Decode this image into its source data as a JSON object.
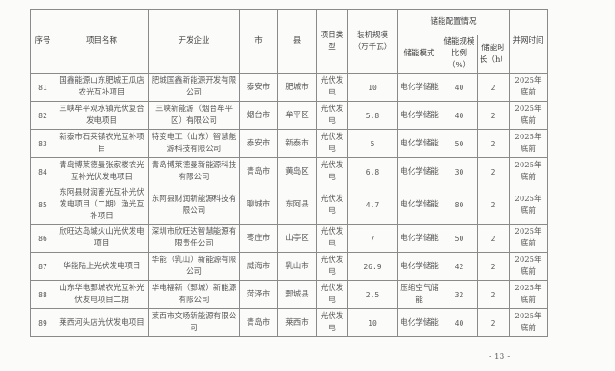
{
  "headers": {
    "seq": "序号",
    "name": "项目名称",
    "company": "开发企业",
    "city": "市",
    "county": "县",
    "type": "项目类型",
    "scale": "装机规模（万千瓦）",
    "storage_group": "储能配置情况",
    "mode": "储能模式",
    "ratio": "储能规模比例（%）",
    "duration": "储能时长（h）",
    "grid_time": "并网时间"
  },
  "rows": [
    {
      "seq": "81",
      "name": "国鑫能源山东肥城王瓜店农光互补项目",
      "company": "肥城国鑫新能源开发有限公司",
      "city": "泰安市",
      "county": "肥城市",
      "type": "光伏发电",
      "scale": "10",
      "mode": "电化学储能",
      "ratio": "40",
      "duration": "2",
      "grid_time": "2025年底前"
    },
    {
      "seq": "82",
      "name": "三峡牟平观水镇光伏复合发电项目",
      "company": "三峡新能源（烟台牟平区）有限公司",
      "city": "烟台市",
      "county": "牟平区",
      "type": "光伏发电",
      "scale": "5.8",
      "mode": "电化学储能",
      "ratio": "40",
      "duration": "2",
      "grid_time": "2025年底前"
    },
    {
      "seq": "83",
      "name": "新泰市石莱镇农光互补项目",
      "company": "特变电工（山东）智慧能源科技有限公司",
      "city": "泰安市",
      "county": "新泰市",
      "type": "光伏发电",
      "scale": "5",
      "mode": "电化学储能",
      "ratio": "50",
      "duration": "2",
      "grid_time": "2025年底前"
    },
    {
      "seq": "84",
      "name": "青岛博莱德曼张家楼农光互补光伏发电项目",
      "company": "青岛博莱德曼新能源科技有限公司",
      "city": "青岛市",
      "county": "黄岛区",
      "type": "光伏发电",
      "scale": "6.8",
      "mode": "电化学储能",
      "ratio": "30",
      "duration": "2",
      "grid_time": "2025年底前"
    },
    {
      "seq": "85",
      "name": "东阿县财润畜光互补光伏发电项目（二期）渔光互补项目",
      "company": "东阿县财润新能源科技有限公司",
      "city": "聊城市",
      "county": "东阿县",
      "type": "光伏发电",
      "scale": "4.7",
      "mode": "电化学储能",
      "ratio": "80",
      "duration": "2",
      "grid_time": "2025年底前"
    },
    {
      "seq": "86",
      "name": "欣旺达岛城火山光伏发电项目",
      "company": "深圳市欣旺达智慧能源有限责任公司",
      "city": "枣庄市",
      "county": "山亭区",
      "type": "光伏发电",
      "scale": "7",
      "mode": "电化学储能",
      "ratio": "50",
      "duration": "2",
      "grid_time": "2025年底前"
    },
    {
      "seq": "87",
      "name": "华能陆上光伏发电项目",
      "company": "华能（乳山）新能源有限公司",
      "city": "威海市",
      "county": "乳山市",
      "type": "光伏发电",
      "scale": "26.9",
      "mode": "电化学储能",
      "ratio": "42",
      "duration": "2",
      "grid_time": "2025年底前"
    },
    {
      "seq": "88",
      "name": "山东华电鄄城农光互补光伏发电项目二期",
      "company": "华电福新（鄄城）新能源有限公司",
      "city": "菏泽市",
      "county": "鄄城县",
      "type": "光伏发电",
      "scale": "2.5",
      "mode": "压缩空气储能",
      "ratio": "32",
      "duration": "2",
      "grid_time": "2025年底前"
    },
    {
      "seq": "89",
      "name": "莱西河头店光伏发电项目",
      "company": "莱西市文旸新能源有限公司",
      "city": "青岛市",
      "county": "莱西市",
      "type": "光伏发电",
      "scale": "10",
      "mode": "电化学储能",
      "ratio": "40",
      "duration": "2",
      "grid_time": "2025年底前"
    }
  ],
  "page_number": "- 13 -"
}
